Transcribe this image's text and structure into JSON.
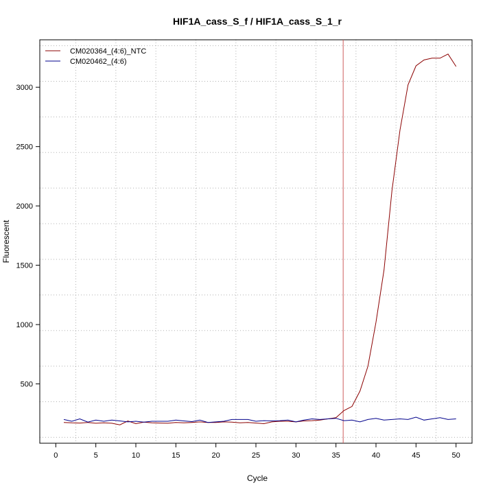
{
  "chart_data": {
    "type": "line",
    "title": "HIF1A_cass_S_f / HIF1A_cass_S_1_r",
    "xlabel": "Cycle",
    "ylabel": "Fluorescent",
    "xlim": [
      -2,
      52
    ],
    "ylim": [
      0,
      3400
    ],
    "x_ticks": [
      0,
      5,
      10,
      15,
      20,
      25,
      30,
      35,
      40,
      45,
      50
    ],
    "y_ticks": [
      500,
      1000,
      1500,
      2000,
      2500,
      3000
    ],
    "grid": true,
    "legend_position": "top-left",
    "threshold_cycle": 35.9,
    "series": [
      {
        "name": "CM020364_(4:6)_NTC",
        "color": "#8b0000",
        "x": [
          1,
          2,
          3,
          4,
          5,
          6,
          7,
          8,
          9,
          10,
          11,
          12,
          13,
          14,
          15,
          16,
          17,
          18,
          19,
          20,
          21,
          22,
          23,
          24,
          25,
          26,
          27,
          28,
          29,
          30,
          31,
          32,
          33,
          34,
          35,
          36,
          37,
          38,
          39,
          40,
          41,
          42,
          43,
          44,
          45,
          46,
          47,
          48,
          49,
          50
        ],
        "values": [
          175,
          172,
          170,
          175,
          168,
          172,
          168,
          155,
          188,
          165,
          178,
          172,
          170,
          168,
          175,
          172,
          175,
          180,
          175,
          175,
          180,
          178,
          172,
          175,
          170,
          165,
          180,
          185,
          185,
          180,
          188,
          190,
          195,
          205,
          215,
          275,
          310,
          440,
          650,
          1020,
          1460,
          2130,
          2640,
          3020,
          3180,
          3230,
          3245,
          3245,
          3280,
          3175
        ]
      },
      {
        "name": "CM020462_(4:6)",
        "color": "#00008b",
        "x": [
          1,
          2,
          3,
          4,
          5,
          6,
          7,
          8,
          9,
          10,
          11,
          12,
          13,
          14,
          15,
          16,
          17,
          18,
          19,
          20,
          21,
          22,
          23,
          24,
          25,
          26,
          27,
          28,
          29,
          30,
          31,
          32,
          33,
          34,
          35,
          36,
          37,
          38,
          39,
          40,
          41,
          42,
          43,
          44,
          45,
          46,
          47,
          48,
          49,
          50
        ],
        "values": [
          200,
          185,
          205,
          178,
          195,
          185,
          195,
          188,
          180,
          185,
          178,
          185,
          185,
          185,
          195,
          188,
          182,
          195,
          175,
          180,
          185,
          200,
          200,
          200,
          185,
          190,
          188,
          190,
          195,
          180,
          195,
          205,
          200,
          205,
          210,
          190,
          195,
          180,
          200,
          210,
          195,
          200,
          205,
          200,
          220,
          195,
          205,
          215,
          200,
          205
        ]
      }
    ]
  }
}
